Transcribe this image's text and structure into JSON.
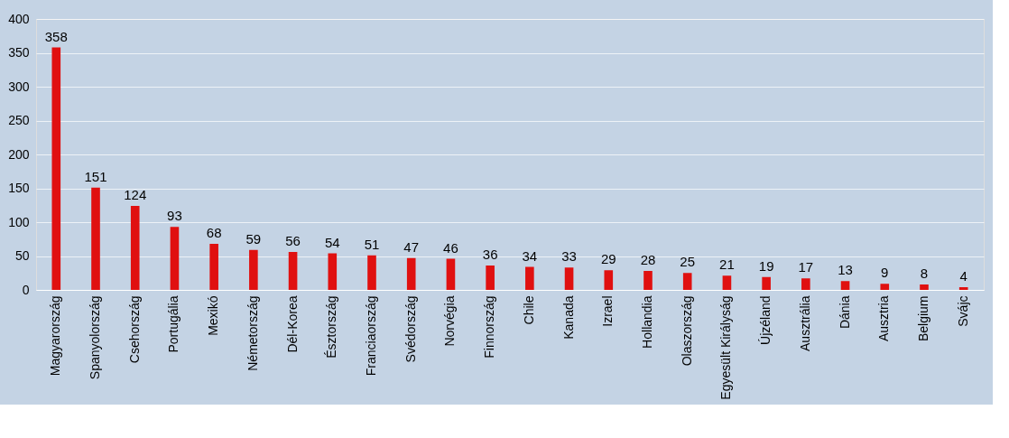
{
  "chart_data": {
    "type": "bar",
    "categories": [
      "Magyarország",
      "Spanyolország",
      "Csehország",
      "Portugália",
      "Mexikó",
      "Németország",
      "Dél-Korea",
      "Észtország",
      "Franciaország",
      "Svédország",
      "Norvégia",
      "Finnország",
      "Chile",
      "Kanada",
      "Izrael",
      "Hollandia",
      "Olaszország",
      "Egyesült Királyság",
      "Újzéland",
      "Ausztrália",
      "Dánia",
      "Ausztria",
      "Belgium",
      "Svájc"
    ],
    "values": [
      358,
      151,
      124,
      93,
      68,
      59,
      56,
      54,
      51,
      47,
      46,
      36,
      34,
      33,
      29,
      28,
      25,
      21,
      19,
      17,
      13,
      9,
      8,
      4
    ],
    "color": "#e01010",
    "ylim": [
      0,
      400
    ],
    "yticks": [
      0,
      50,
      100,
      150,
      200,
      250,
      300,
      350,
      400
    ],
    "grid": "y",
    "data_labels": true
  }
}
